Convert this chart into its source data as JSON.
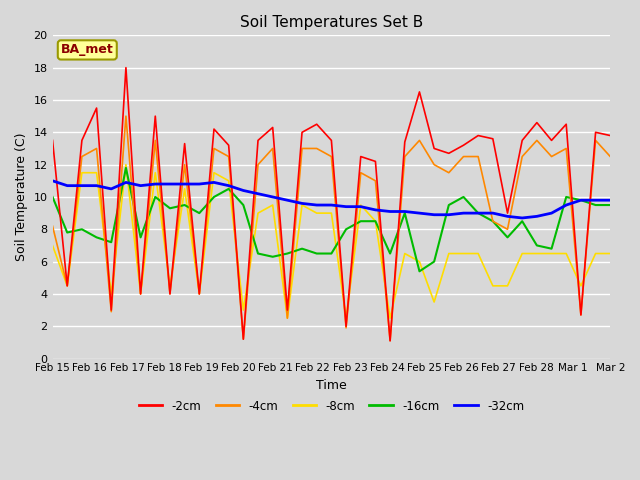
{
  "title": "Soil Temperatures Set B",
  "xlabel": "Time",
  "ylabel": "Soil Temperature (C)",
  "ylim": [
    0,
    20
  ],
  "annotation": "BA_met",
  "figsize": [
    6.4,
    4.8
  ],
  "dpi": 100,
  "series_colors": {
    "-2cm": "#ff0000",
    "-4cm": "#ff8800",
    "-8cm": "#ffdd00",
    "-16cm": "#00bb00",
    "-32cm": "#0000ff"
  },
  "x_tick_labels": [
    "Feb 15",
    "Feb 16",
    "Feb 17",
    "Feb 18",
    "Feb 19",
    "Feb 20",
    "Feb 21",
    "Feb 22",
    "Feb 23",
    "Feb 24",
    "Feb 25",
    "Feb 26",
    "Feb 27",
    "Feb 28",
    "Mar 1",
    "Mar 2"
  ],
  "series": {
    "-2cm": [
      13.5,
      4.5,
      13.5,
      15.5,
      3.0,
      18.0,
      4.0,
      15.0,
      4.0,
      13.3,
      4.0,
      14.2,
      13.2,
      1.2,
      13.5,
      14.3,
      3.0,
      14.0,
      14.5,
      13.5,
      2.0,
      12.5,
      12.2,
      1.1,
      13.4,
      16.5,
      13.0,
      12.7,
      13.2,
      13.8,
      13.6,
      9.0,
      13.5,
      14.6,
      13.5,
      14.5,
      2.7,
      14.0,
      13.8
    ],
    "-4cm": [
      8.2,
      4.5,
      12.5,
      13.0,
      2.9,
      15.0,
      4.0,
      13.5,
      4.0,
      12.0,
      4.0,
      13.0,
      12.5,
      1.2,
      12.0,
      13.0,
      2.5,
      13.0,
      13.0,
      12.5,
      1.9,
      11.5,
      11.0,
      1.1,
      12.5,
      13.5,
      12.0,
      11.5,
      12.5,
      12.5,
      8.5,
      8.0,
      12.5,
      13.5,
      12.5,
      13.0,
      2.7,
      13.5,
      12.5
    ],
    "-8cm": [
      7.0,
      4.5,
      11.5,
      11.5,
      4.0,
      12.0,
      4.0,
      11.5,
      4.5,
      10.5,
      4.0,
      11.5,
      11.0,
      3.0,
      9.0,
      9.5,
      2.5,
      9.5,
      9.0,
      9.0,
      2.5,
      9.5,
      8.5,
      2.5,
      6.5,
      6.0,
      3.5,
      6.5,
      6.5,
      6.5,
      4.5,
      4.5,
      6.5,
      6.5,
      6.5,
      6.5,
      4.5,
      6.5,
      6.5
    ],
    "-16cm": [
      10.0,
      7.8,
      8.0,
      7.5,
      7.2,
      11.8,
      7.5,
      10.0,
      9.3,
      9.5,
      9.0,
      10.0,
      10.5,
      9.5,
      6.5,
      6.3,
      6.5,
      6.8,
      6.5,
      6.5,
      8.0,
      8.5,
      8.5,
      6.5,
      9.0,
      5.4,
      6.0,
      9.5,
      10.0,
      9.0,
      8.5,
      7.5,
      8.5,
      7.0,
      6.8,
      10.0,
      9.8,
      9.5,
      9.5
    ],
    "-32cm": [
      11.0,
      10.7,
      10.7,
      10.7,
      10.5,
      10.9,
      10.7,
      10.8,
      10.8,
      10.8,
      10.8,
      10.9,
      10.7,
      10.4,
      10.2,
      10.0,
      9.8,
      9.6,
      9.5,
      9.5,
      9.4,
      9.4,
      9.2,
      9.1,
      9.1,
      9.0,
      8.9,
      8.9,
      9.0,
      9.0,
      9.0,
      8.8,
      8.7,
      8.8,
      9.0,
      9.5,
      9.8,
      9.8,
      9.8
    ]
  }
}
